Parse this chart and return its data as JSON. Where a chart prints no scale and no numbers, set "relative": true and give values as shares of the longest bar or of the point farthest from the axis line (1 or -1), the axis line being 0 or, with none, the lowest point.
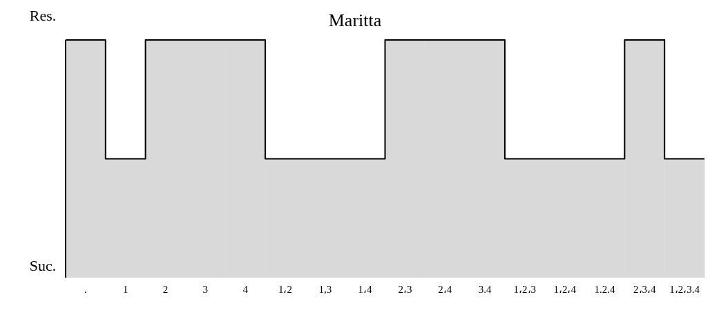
{
  "chart_data": {
    "type": "bar",
    "title": "Maritta",
    "relative": true,
    "annotations": [
      "Res.",
      "Suc."
    ],
    "categories": [
      ".",
      "1",
      "2",
      "3",
      "4",
      "1،2",
      "1,3",
      "1،4",
      "2،3",
      "2،4",
      "3.4",
      "1،2،3",
      "1،2،4",
      "1.2.4",
      "2،3،4",
      "1،2،3.4"
    ],
    "series": [
      {
        "color": "#d9d9d9",
        "values": [
          1,
          0.5,
          1,
          1,
          1,
          0.5,
          0.5,
          0.5,
          1,
          1,
          1,
          0.5,
          0.5,
          0.5,
          1,
          0.5
        ]
      }
    ]
  }
}
